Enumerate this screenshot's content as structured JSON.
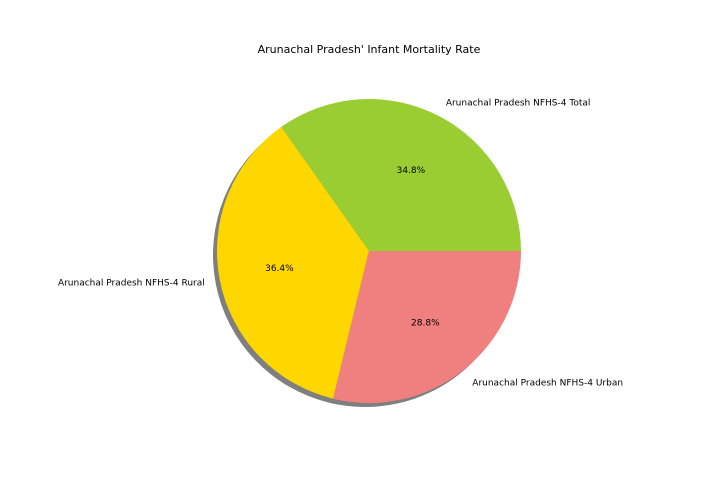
{
  "chart_data": {
    "type": "pie",
    "title": "Arunachal Pradesh' Infant Mortality Rate",
    "slices": [
      {
        "label": "Arunachal Pradesh NFHS-4 Total",
        "percent": 34.8,
        "percent_label": "34.8%",
        "color": "#9acd32"
      },
      {
        "label": "Arunachal Pradesh NFHS-4 Rural",
        "percent": 36.4,
        "percent_label": "36.4%",
        "color": "#ffd700"
      },
      {
        "label": "Arunachal Pradesh NFHS-4 Urban",
        "percent": 28.8,
        "percent_label": "28.8%",
        "color": "#f08080"
      }
    ],
    "start_angle_deg": 0,
    "direction": "counterclockwise",
    "shadow": true
  }
}
